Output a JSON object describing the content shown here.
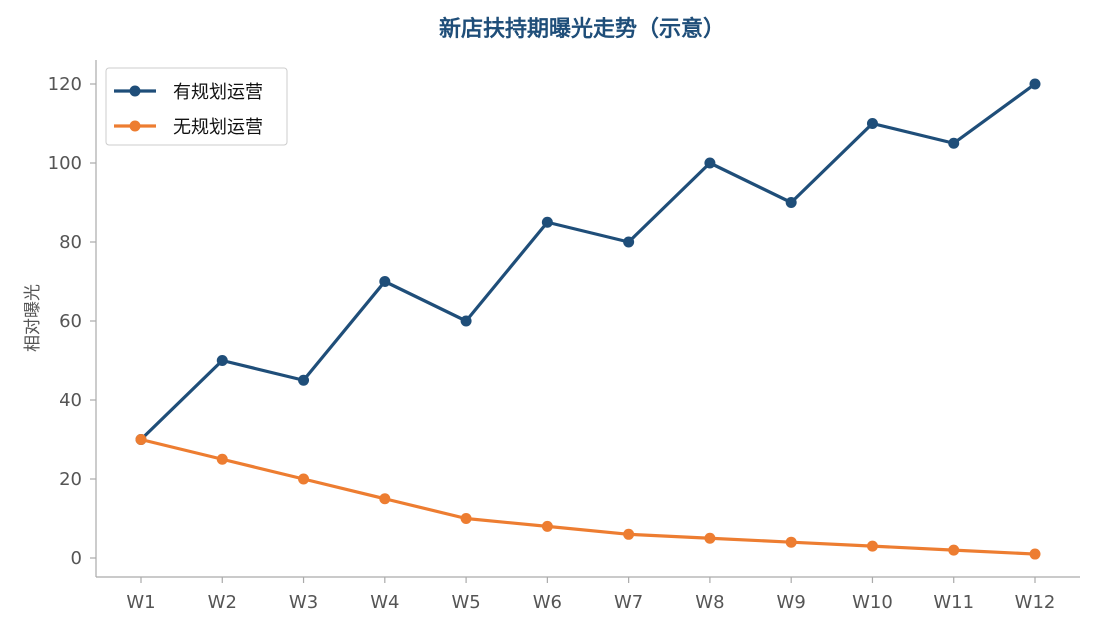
{
  "chart_data": {
    "type": "line",
    "title": "新店扶持期曝光走势（示意）",
    "xlabel": "",
    "ylabel": "相对曝光",
    "categories": [
      "W1",
      "W2",
      "W3",
      "W4",
      "W5",
      "W6",
      "W7",
      "W8",
      "W9",
      "W10",
      "W11",
      "W12"
    ],
    "series": [
      {
        "name": "有规划运营",
        "color": "#1f4e79",
        "values": [
          30,
          50,
          45,
          70,
          60,
          85,
          80,
          100,
          90,
          110,
          105,
          120
        ]
      },
      {
        "name": "无规划运营",
        "color": "#ed7d31",
        "values": [
          30,
          25,
          20,
          15,
          10,
          8,
          6,
          5,
          4,
          3,
          2,
          1
        ]
      }
    ],
    "ylim": [
      -5,
      126
    ],
    "yticks": [
      0,
      20,
      40,
      60,
      80,
      100,
      120
    ],
    "grid": false,
    "legend_position": "top-left",
    "title_color": "#1f4e79"
  }
}
